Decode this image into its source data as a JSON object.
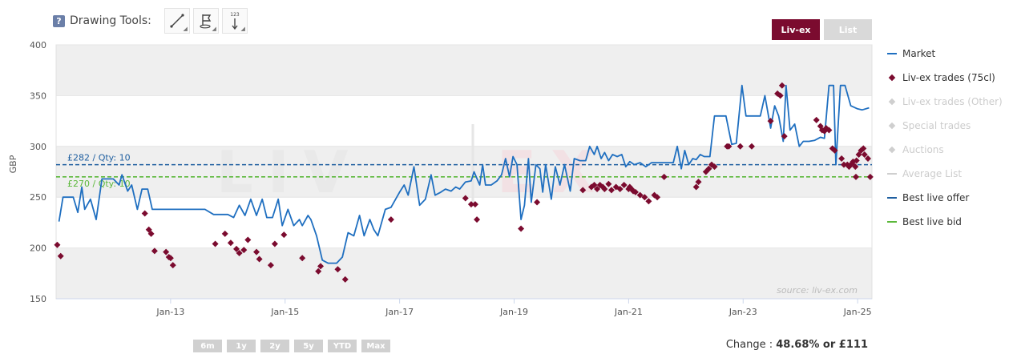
{
  "toolbar": {
    "help": "?",
    "label": "Drawing Tools:",
    "tools": [
      {
        "icon": "trend-line-icon"
      },
      {
        "icon": "flag-icon"
      },
      {
        "icon": "measure-icon",
        "badge": "123"
      }
    ]
  },
  "toggle": {
    "liv_ex": "Liv-ex",
    "list": "List"
  },
  "colors": {
    "market": "#1f6fc0",
    "trades": "#7b0b2f",
    "offer": "#1f5fa0",
    "bid": "#5bb83a",
    "inactive": "#cfcfcf"
  },
  "legend": [
    {
      "label": "Market",
      "symbol": "line",
      "active": true
    },
    {
      "label": "Liv-ex trades (75cl)",
      "symbol": "diamond",
      "active": true
    },
    {
      "label": "Liv-ex trades (Other)",
      "symbol": "diamond",
      "active": false
    },
    {
      "label": "Special trades",
      "symbol": "diamond",
      "active": false
    },
    {
      "label": "Auctions",
      "symbol": "diamond",
      "active": false
    },
    {
      "label": "Average List",
      "symbol": "line",
      "active": false
    },
    {
      "label": "Best live offer",
      "symbol": "dash-blue",
      "active": true
    },
    {
      "label": "Best live bid",
      "symbol": "dash-green",
      "active": true
    }
  ],
  "ranges": [
    "6m",
    "1y",
    "2y",
    "5y",
    "YTD",
    "Max"
  ],
  "change": {
    "label": "Change :",
    "value": "48.68% or £111"
  },
  "chart_data": {
    "type": "line",
    "ylabel": "GBP",
    "ylim": [
      150,
      400
    ],
    "yticks": [
      150,
      200,
      250,
      300,
      350,
      400
    ],
    "xlim": [
      2011.0,
      2025.25
    ],
    "xticks": [
      {
        "label": "Jan-13",
        "x": 2013
      },
      {
        "label": "Jan-15",
        "x": 2015
      },
      {
        "label": "Jan-17",
        "x": 2017
      },
      {
        "label": "Jan-19",
        "x": 2019
      },
      {
        "label": "Jan-21",
        "x": 2021
      },
      {
        "label": "Jan-23",
        "x": 2023
      },
      {
        "label": "Jan-25",
        "x": 2025
      }
    ],
    "watermark_source": "source: liv-ex.com",
    "best_live_offer": {
      "value": 282,
      "label": "£282 / Qty: 10"
    },
    "best_live_bid": {
      "value": 270,
      "label": "£270 / Qty: 10"
    },
    "market": [
      [
        2011.05,
        226
      ],
      [
        2011.12,
        250
      ],
      [
        2011.3,
        250
      ],
      [
        2011.38,
        235
      ],
      [
        2011.45,
        260
      ],
      [
        2011.5,
        238
      ],
      [
        2011.6,
        248
      ],
      [
        2011.7,
        228
      ],
      [
        2011.8,
        268
      ],
      [
        2011.9,
        268
      ],
      [
        2012.0,
        268
      ],
      [
        2012.1,
        262
      ],
      [
        2012.15,
        272
      ],
      [
        2012.25,
        256
      ],
      [
        2012.32,
        262
      ],
      [
        2012.42,
        238
      ],
      [
        2012.5,
        258
      ],
      [
        2012.6,
        258
      ],
      [
        2012.68,
        238
      ],
      [
        2012.8,
        238
      ],
      [
        2013.2,
        238
      ],
      [
        2013.6,
        238
      ],
      [
        2013.75,
        233
      ],
      [
        2014.0,
        233
      ],
      [
        2014.1,
        230
      ],
      [
        2014.2,
        242
      ],
      [
        2014.3,
        232
      ],
      [
        2014.4,
        248
      ],
      [
        2014.5,
        232
      ],
      [
        2014.6,
        248
      ],
      [
        2014.68,
        230
      ],
      [
        2014.78,
        230
      ],
      [
        2014.88,
        248
      ],
      [
        2014.95,
        222
      ],
      [
        2015.05,
        238
      ],
      [
        2015.15,
        222
      ],
      [
        2015.25,
        228
      ],
      [
        2015.3,
        222
      ],
      [
        2015.4,
        232
      ],
      [
        2015.45,
        228
      ],
      [
        2015.55,
        212
      ],
      [
        2015.65,
        188
      ],
      [
        2015.75,
        185
      ],
      [
        2015.9,
        185
      ],
      [
        2016.0,
        191
      ],
      [
        2016.1,
        215
      ],
      [
        2016.2,
        212
      ],
      [
        2016.3,
        232
      ],
      [
        2016.38,
        212
      ],
      [
        2016.48,
        228
      ],
      [
        2016.55,
        218
      ],
      [
        2016.62,
        212
      ],
      [
        2016.75,
        238
      ],
      [
        2016.85,
        240
      ],
      [
        2017.0,
        255
      ],
      [
        2017.08,
        262
      ],
      [
        2017.15,
        252
      ],
      [
        2017.25,
        280
      ],
      [
        2017.35,
        242
      ],
      [
        2017.45,
        248
      ],
      [
        2017.55,
        272
      ],
      [
        2017.62,
        252
      ],
      [
        2017.72,
        255
      ],
      [
        2017.8,
        258
      ],
      [
        2017.9,
        256
      ],
      [
        2017.98,
        260
      ],
      [
        2018.05,
        258
      ],
      [
        2018.15,
        265
      ],
      [
        2018.25,
        266
      ],
      [
        2018.3,
        275
      ],
      [
        2018.4,
        262
      ],
      [
        2018.45,
        282
      ],
      [
        2018.5,
        262
      ],
      [
        2018.6,
        262
      ],
      [
        2018.7,
        266
      ],
      [
        2018.78,
        272
      ],
      [
        2018.85,
        288
      ],
      [
        2018.92,
        270
      ],
      [
        2018.98,
        290
      ],
      [
        2019.05,
        282
      ],
      [
        2019.12,
        228
      ],
      [
        2019.18,
        242
      ],
      [
        2019.25,
        288
      ],
      [
        2019.3,
        245
      ],
      [
        2019.38,
        282
      ],
      [
        2019.45,
        278
      ],
      [
        2019.5,
        255
      ],
      [
        2019.55,
        282
      ],
      [
        2019.65,
        248
      ],
      [
        2019.72,
        280
      ],
      [
        2019.8,
        262
      ],
      [
        2019.88,
        282
      ],
      [
        2019.98,
        256
      ],
      [
        2020.05,
        288
      ],
      [
        2020.15,
        286
      ],
      [
        2020.25,
        286
      ],
      [
        2020.32,
        300
      ],
      [
        2020.4,
        292
      ],
      [
        2020.45,
        300
      ],
      [
        2020.52,
        288
      ],
      [
        2020.58,
        294
      ],
      [
        2020.65,
        286
      ],
      [
        2020.72,
        292
      ],
      [
        2020.8,
        290
      ],
      [
        2020.88,
        292
      ],
      [
        2020.95,
        280
      ],
      [
        2021.02,
        285
      ],
      [
        2021.1,
        282
      ],
      [
        2021.2,
        284
      ],
      [
        2021.3,
        280
      ],
      [
        2021.4,
        284
      ],
      [
        2021.5,
        284
      ],
      [
        2021.7,
        284
      ],
      [
        2021.78,
        284
      ],
      [
        2021.85,
        300
      ],
      [
        2021.92,
        278
      ],
      [
        2021.98,
        296
      ],
      [
        2022.05,
        282
      ],
      [
        2022.12,
        288
      ],
      [
        2022.18,
        287
      ],
      [
        2022.25,
        292
      ],
      [
        2022.32,
        290
      ],
      [
        2022.42,
        290
      ],
      [
        2022.5,
        330
      ],
      [
        2022.7,
        330
      ],
      [
        2022.8,
        302
      ],
      [
        2022.88,
        303
      ],
      [
        2022.98,
        360
      ],
      [
        2023.05,
        330
      ],
      [
        2023.15,
        330
      ],
      [
        2023.3,
        330
      ],
      [
        2023.38,
        350
      ],
      [
        2023.48,
        318
      ],
      [
        2023.55,
        340
      ],
      [
        2023.62,
        330
      ],
      [
        2023.7,
        305
      ],
      [
        2023.75,
        360
      ],
      [
        2023.82,
        316
      ],
      [
        2023.9,
        322
      ],
      [
        2023.98,
        300
      ],
      [
        2024.05,
        305
      ],
      [
        2024.15,
        305
      ],
      [
        2024.25,
        306
      ],
      [
        2024.35,
        309
      ],
      [
        2024.42,
        308
      ],
      [
        2024.5,
        360
      ],
      [
        2024.58,
        360
      ],
      [
        2024.62,
        282
      ],
      [
        2024.7,
        360
      ],
      [
        2024.78,
        360
      ],
      [
        2024.88,
        340
      ],
      [
        2025.0,
        337
      ],
      [
        2025.08,
        336
      ],
      [
        2025.2,
        338
      ]
    ],
    "trades": [
      [
        2011.02,
        203
      ],
      [
        2011.08,
        192
      ],
      [
        2012.55,
        234
      ],
      [
        2012.62,
        218
      ],
      [
        2012.66,
        214
      ],
      [
        2012.72,
        197
      ],
      [
        2012.92,
        196
      ],
      [
        2012.97,
        191
      ],
      [
        2013.0,
        190
      ],
      [
        2013.04,
        183
      ],
      [
        2013.78,
        204
      ],
      [
        2013.95,
        214
      ],
      [
        2014.05,
        205
      ],
      [
        2014.15,
        199
      ],
      [
        2014.2,
        195
      ],
      [
        2014.28,
        198
      ],
      [
        2014.35,
        208
      ],
      [
        2014.5,
        196
      ],
      [
        2014.55,
        189
      ],
      [
        2014.75,
        183
      ],
      [
        2014.82,
        204
      ],
      [
        2014.98,
        213
      ],
      [
        2015.3,
        190
      ],
      [
        2015.58,
        177
      ],
      [
        2015.62,
        182
      ],
      [
        2015.92,
        179
      ],
      [
        2016.05,
        169
      ],
      [
        2016.85,
        228
      ],
      [
        2018.15,
        249
      ],
      [
        2018.25,
        243
      ],
      [
        2018.32,
        243
      ],
      [
        2018.35,
        228
      ],
      [
        2019.12,
        219
      ],
      [
        2019.4,
        245
      ],
      [
        2020.2,
        257
      ],
      [
        2020.35,
        260
      ],
      [
        2020.4,
        262
      ],
      [
        2020.45,
        258
      ],
      [
        2020.5,
        262
      ],
      [
        2020.55,
        260
      ],
      [
        2020.58,
        258
      ],
      [
        2020.65,
        263
      ],
      [
        2020.7,
        257
      ],
      [
        2020.78,
        260
      ],
      [
        2020.85,
        258
      ],
      [
        2020.92,
        262
      ],
      [
        2021.0,
        258
      ],
      [
        2021.02,
        260
      ],
      [
        2021.05,
        258
      ],
      [
        2021.08,
        256
      ],
      [
        2021.12,
        255
      ],
      [
        2021.2,
        252
      ],
      [
        2021.28,
        250
      ],
      [
        2021.35,
        246
      ],
      [
        2021.45,
        252
      ],
      [
        2021.5,
        250
      ],
      [
        2021.62,
        270
      ],
      [
        2022.18,
        260
      ],
      [
        2022.22,
        265
      ],
      [
        2022.35,
        275
      ],
      [
        2022.4,
        278
      ],
      [
        2022.45,
        282
      ],
      [
        2022.5,
        280
      ],
      [
        2022.72,
        300
      ],
      [
        2022.75,
        300
      ],
      [
        2022.95,
        300
      ],
      [
        2023.15,
        300
      ],
      [
        2023.48,
        325
      ],
      [
        2023.6,
        352
      ],
      [
        2023.65,
        350
      ],
      [
        2023.68,
        360
      ],
      [
        2023.72,
        310
      ],
      [
        2024.28,
        326
      ],
      [
        2024.35,
        320
      ],
      [
        2024.38,
        316
      ],
      [
        2024.42,
        315
      ],
      [
        2024.45,
        318
      ],
      [
        2024.5,
        316
      ],
      [
        2024.56,
        298
      ],
      [
        2024.6,
        296
      ],
      [
        2024.72,
        288
      ],
      [
        2024.76,
        282
      ],
      [
        2024.82,
        282
      ],
      [
        2024.88,
        282
      ],
      [
        2024.92,
        285
      ],
      [
        2024.96,
        280
      ],
      [
        2024.98,
        286
      ],
      [
        2025.02,
        292
      ],
      [
        2025.06,
        296
      ],
      [
        2025.12,
        292
      ],
      [
        2025.18,
        288
      ],
      [
        2025.22,
        270
      ],
      [
        2024.97,
        270
      ],
      [
        2024.9,
        283
      ],
      [
        2024.85,
        280
      ],
      [
        2025.1,
        298
      ]
    ]
  }
}
